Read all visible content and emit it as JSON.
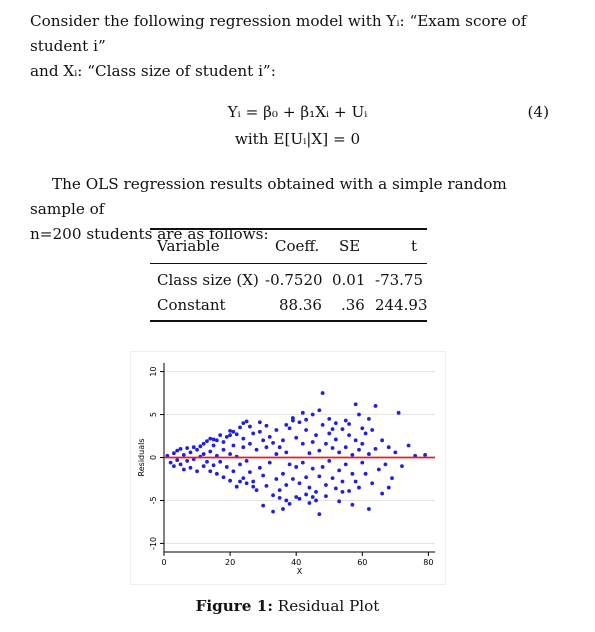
{
  "intro": {
    "line1": "Consider the following regression model with Yᵢ: “Exam score of student i”",
    "line2": "and Xᵢ: “Class size of student i”:"
  },
  "equation": {
    "main": "Yᵢ = β₀ + β₁Xᵢ + Uᵢ",
    "condition": "with E[Uᵢ|X] = 0",
    "number": "(4)"
  },
  "ols_text": {
    "line1": "The OLS regression results obtained with a simple random sample of",
    "line2": "n=200 students are as follows:"
  },
  "table": {
    "headers": [
      "Variable",
      "Coeff.",
      "SE",
      "t"
    ],
    "rows": [
      [
        "Class size (X)",
        "-0.7520",
        "0.01",
        "-73.75"
      ],
      [
        "Constant",
        "88.36",
        ".36",
        "244.93"
      ]
    ]
  },
  "chart_data": {
    "type": "scatter",
    "xlabel": "X",
    "ylabel": "Residuals",
    "xlim": [
      0,
      82
    ],
    "ylim": [
      -11,
      11
    ],
    "x_ticks": [
      0,
      20,
      40,
      60,
      80
    ],
    "y_ticks": [
      -10,
      -5,
      0,
      5,
      10
    ],
    "grid": "horizontal",
    "reference_line": 0,
    "colors": {
      "points": "#1f1fe0",
      "reference_line": "#e81e1e"
    },
    "points": [
      [
        1,
        0.2
      ],
      [
        2,
        -0.6
      ],
      [
        3,
        0.5
      ],
      [
        3,
        -1.0
      ],
      [
        4,
        0.8
      ],
      [
        4,
        -0.3
      ],
      [
        5,
        1.0
      ],
      [
        5,
        -0.8
      ],
      [
        6,
        0.3
      ],
      [
        6,
        -1.4
      ],
      [
        7,
        1.1
      ],
      [
        7,
        -0.4
      ],
      [
        8,
        0.6
      ],
      [
        8,
        -1.2
      ],
      [
        9,
        1.2
      ],
      [
        9,
        -0.2
      ],
      [
        10,
        0.9
      ],
      [
        10,
        -1.6
      ],
      [
        11,
        1.3
      ],
      [
        11,
        0.1
      ],
      [
        12,
        1.6
      ],
      [
        12,
        -1.0
      ],
      [
        12,
        0.4
      ],
      [
        13,
        1.9
      ],
      [
        13,
        -0.5
      ],
      [
        14,
        2.2
      ],
      [
        14,
        -1.6
      ],
      [
        14,
        0.7
      ],
      [
        15,
        1.4
      ],
      [
        15,
        -0.9
      ],
      [
        16,
        2.0
      ],
      [
        16,
        -1.9
      ],
      [
        16,
        0.2
      ],
      [
        17,
        2.6
      ],
      [
        17,
        -0.5
      ],
      [
        18,
        1.8
      ],
      [
        18,
        -2.3
      ],
      [
        18,
        0.9
      ],
      [
        19,
        2.4
      ],
      [
        19,
        -1.1
      ],
      [
        20,
        3.1
      ],
      [
        20,
        -2.7
      ],
      [
        20,
        0.4
      ],
      [
        21,
        1.4
      ],
      [
        21,
        -1.6
      ],
      [
        22,
        2.7
      ],
      [
        22,
        -3.4
      ],
      [
        22,
        0.1
      ],
      [
        23,
        3.5
      ],
      [
        23,
        -0.8
      ],
      [
        24,
        2.2
      ],
      [
        24,
        -2.4
      ],
      [
        24,
        1.2
      ],
      [
        25,
        4.2
      ],
      [
        25,
        -3.0
      ],
      [
        25,
        -0.4
      ],
      [
        26,
        1.6
      ],
      [
        26,
        -1.7
      ],
      [
        27,
        2.8
      ],
      [
        27,
        -2.8
      ],
      [
        28,
        0.9
      ],
      [
        28,
        -3.8
      ],
      [
        29,
        3.0
      ],
      [
        29,
        -1.2
      ],
      [
        30,
        2.0
      ],
      [
        30,
        -2.1
      ],
      [
        31,
        1.2
      ],
      [
        31,
        -3.3
      ],
      [
        32,
        2.4
      ],
      [
        32,
        -0.6
      ],
      [
        33,
        -4.4
      ],
      [
        33,
        1.7
      ],
      [
        34,
        -2.5
      ],
      [
        34,
        0.4
      ],
      [
        35,
        -3.8
      ],
      [
        35,
        1.2
      ],
      [
        36,
        2.0
      ],
      [
        36,
        -1.9
      ],
      [
        37,
        0.6
      ],
      [
        37,
        -3.2
      ],
      [
        38,
        3.4
      ],
      [
        38,
        -0.8
      ],
      [
        39,
        4.6
      ],
      [
        39,
        -2.5
      ],
      [
        40,
        2.3
      ],
      [
        40,
        -1.1
      ],
      [
        41,
        4.1
      ],
      [
        41,
        -3.0
      ],
      [
        42,
        1.6
      ],
      [
        42,
        -0.6
      ],
      [
        43,
        3.2
      ],
      [
        43,
        -2.3
      ],
      [
        44,
        0.5
      ],
      [
        44,
        -3.5
      ],
      [
        45,
        1.8
      ],
      [
        45,
        -1.3
      ],
      [
        46,
        2.6
      ],
      [
        46,
        -4.0
      ],
      [
        47,
        0.8
      ],
      [
        47,
        -2.2
      ],
      [
        48,
        3.8
      ],
      [
        48,
        -1.1
      ],
      [
        49,
        1.6
      ],
      [
        49,
        -3.2
      ],
      [
        50,
        2.8
      ],
      [
        50,
        -0.4
      ],
      [
        51,
        -2.4
      ],
      [
        51,
        1.1
      ],
      [
        52,
        2.1
      ],
      [
        52,
        -3.6
      ],
      [
        53,
        0.6
      ],
      [
        53,
        -1.5
      ],
      [
        54,
        3.3
      ],
      [
        54,
        -2.8
      ],
      [
        55,
        1.2
      ],
      [
        55,
        -0.8
      ],
      [
        56,
        2.6
      ],
      [
        56,
        -3.9
      ],
      [
        57,
        0.3
      ],
      [
        57,
        -1.9
      ],
      [
        58,
        2.0
      ],
      [
        58,
        -2.8
      ],
      [
        59,
        0.9
      ],
      [
        59,
        -3.5
      ],
      [
        60,
        1.6
      ],
      [
        60,
        -0.6
      ],
      [
        61,
        2.8
      ],
      [
        61,
        -1.9
      ],
      [
        62,
        0.4
      ],
      [
        63,
        3.2
      ],
      [
        63,
        -3.0
      ],
      [
        64,
        1.0
      ],
      [
        65,
        -1.4
      ],
      [
        66,
        2.0
      ],
      [
        67,
        -0.8
      ],
      [
        68,
        1.2
      ],
      [
        69,
        -2.4
      ],
      [
        70,
        0.6
      ],
      [
        72,
        -1.0
      ],
      [
        74,
        1.4
      ],
      [
        76,
        0.2
      ],
      [
        79,
        0.3
      ],
      [
        42,
        5.2
      ],
      [
        43,
        4.4
      ],
      [
        45,
        5.0
      ],
      [
        44,
        -5.3
      ],
      [
        37,
        -5.0
      ],
      [
        30,
        -5.6
      ],
      [
        48,
        7.5
      ],
      [
        58,
        6.2
      ],
      [
        64,
        6.0
      ],
      [
        71,
        5.2
      ],
      [
        36,
        -6.0
      ],
      [
        62,
        -6.0
      ],
      [
        24,
        4.0
      ],
      [
        50,
        4.5
      ],
      [
        53,
        -5.1
      ],
      [
        47,
        -6.6
      ],
      [
        33,
        -6.3
      ],
      [
        26,
        3.6
      ],
      [
        40,
        -4.6
      ],
      [
        56,
        3.9
      ],
      [
        66,
        -4.2
      ],
      [
        29,
        4.1
      ],
      [
        39,
        4.3
      ],
      [
        46,
        -5.0
      ],
      [
        52,
        4.0
      ],
      [
        35,
        -4.7
      ],
      [
        57,
        -5.5
      ],
      [
        60,
        3.4
      ],
      [
        31,
        3.7
      ],
      [
        21,
        3.0
      ],
      [
        27,
        -3.4
      ],
      [
        41,
        -4.8
      ],
      [
        49,
        -4.5
      ],
      [
        55,
        4.3
      ],
      [
        23,
        -2.8
      ],
      [
        45,
        -4.6
      ],
      [
        51,
        3.3
      ],
      [
        34,
        3.2
      ],
      [
        20,
        2.6
      ],
      [
        15,
        2.1
      ],
      [
        37,
        3.8
      ],
      [
        43,
        -4.3
      ],
      [
        62,
        4.5
      ],
      [
        68,
        -3.5
      ],
      [
        59,
        5.0
      ],
      [
        54,
        -4.0
      ],
      [
        38,
        -5.4
      ],
      [
        47,
        5.5
      ]
    ]
  }
}
